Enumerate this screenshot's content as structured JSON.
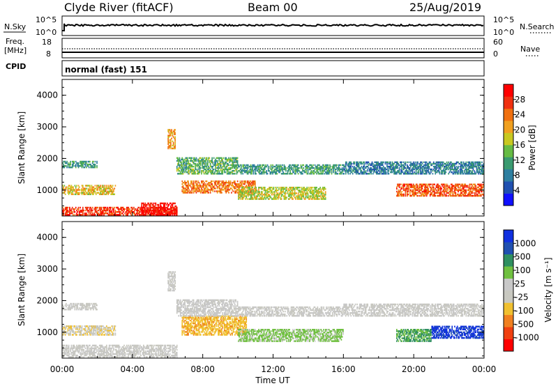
{
  "header": {
    "station": "Clyde River (fitACF)",
    "beam": "Beam 00",
    "date": "25/Aug/2019"
  },
  "nsky_panel": {
    "left_label": "N.Sky",
    "right_label": "N.Search",
    "left_ticks": [
      "10^5",
      "10^0"
    ],
    "right_ticks": [
      "10^5",
      "10^0"
    ]
  },
  "freq_panel": {
    "left_label_line1": "Freq.",
    "left_label_line2": "[MHz]",
    "right_label": "Nave",
    "left_ticks": [
      "18",
      "8"
    ],
    "right_ticks": [
      "60",
      "0"
    ]
  },
  "cpid": {
    "label": "CPID",
    "value": "normal (fast) 151"
  },
  "colors": {
    "power_scale": [
      "#1010ff",
      "#2050b0",
      "#2e7fa0",
      "#3a9a70",
      "#66bb44",
      "#c8c820",
      "#f0a020",
      "#f07010",
      "#f03010",
      "#ff0000"
    ],
    "velocity_scale": [
      "#ff0000",
      "#f04010",
      "#f08020",
      "#f0c030",
      "#c8c8c0",
      "#c8c8c8",
      "#70c040",
      "#2f8f60",
      "#2050b0",
      "#1030e0"
    ]
  },
  "chart_data": [
    {
      "type": "heatmap",
      "title": "Power",
      "xlabel": "",
      "ylabel": "Slant Range [km]",
      "x_ticks": [
        "00:00",
        "04:00",
        "08:00",
        "12:00",
        "16:00",
        "20:00",
        "00:00"
      ],
      "y_ticks": [
        "1000",
        "2000",
        "3000",
        "4000"
      ],
      "ylim": [
        180,
        4500
      ],
      "colorbar": {
        "label": "Power [dB]",
        "ticks": [
          "4",
          "8",
          "12",
          "16",
          "20",
          "24",
          "28"
        ],
        "range": [
          0,
          30
        ]
      },
      "bands": [
        {
          "from_hour": 0.0,
          "to_hour": 2.0,
          "range_km": [
            1700,
            1900
          ],
          "value": 10
        },
        {
          "from_hour": 0.0,
          "to_hour": 3.0,
          "range_km": [
            850,
            1150
          ],
          "value": 18
        },
        {
          "from_hour": 0.0,
          "to_hour": 6.5,
          "range_km": [
            200,
            450
          ],
          "value": 26
        },
        {
          "from_hour": 4.5,
          "to_hour": 6.5,
          "range_km": [
            200,
            600
          ],
          "value": 28
        },
        {
          "from_hour": 6.5,
          "to_hour": 10.0,
          "range_km": [
            1500,
            2000
          ],
          "value": 12
        },
        {
          "from_hour": 6.8,
          "to_hour": 11.0,
          "range_km": [
            900,
            1300
          ],
          "value": 22
        },
        {
          "from_hour": 10.0,
          "to_hour": 16.0,
          "range_km": [
            1500,
            1800
          ],
          "value": 10
        },
        {
          "from_hour": 10.0,
          "to_hour": 15.0,
          "range_km": [
            700,
            1100
          ],
          "value": 16
        },
        {
          "from_hour": 16.0,
          "to_hour": 24.0,
          "range_km": [
            1500,
            1900
          ],
          "value": 8
        },
        {
          "from_hour": 19.0,
          "to_hour": 24.0,
          "range_km": [
            800,
            1200
          ],
          "value": 24
        },
        {
          "from_hour": 6.0,
          "to_hour": 6.4,
          "range_km": [
            2300,
            2900
          ],
          "value": 20
        }
      ]
    },
    {
      "type": "heatmap",
      "title": "Velocity",
      "xlabel": "Time UT",
      "ylabel": "Slant Range [km]",
      "x_ticks": [
        "00:00",
        "04:00",
        "08:00",
        "12:00",
        "16:00",
        "20:00",
        "00:00"
      ],
      "y_ticks": [
        "1000",
        "2000",
        "3000",
        "4000"
      ],
      "ylim": [
        180,
        4500
      ],
      "colorbar": {
        "label": "Velocity [m s⁻¹]",
        "ticks": [
          "-1000",
          "-500",
          "-100",
          "-25",
          "25",
          "100",
          "500",
          "1000"
        ],
        "range": [
          -1200,
          1200
        ]
      },
      "bands": [
        {
          "from_hour": 0.0,
          "to_hour": 2.0,
          "range_km": [
            1700,
            1900
          ],
          "value": 0
        },
        {
          "from_hour": 0.0,
          "to_hour": 3.0,
          "range_km": [
            900,
            1200
          ],
          "value": -200
        },
        {
          "from_hour": 0.0,
          "to_hour": 6.5,
          "range_km": [
            200,
            600
          ],
          "value": 0
        },
        {
          "from_hour": 6.8,
          "to_hour": 10.5,
          "range_km": [
            900,
            1500
          ],
          "value": -400
        },
        {
          "from_hour": 6.5,
          "to_hour": 10.0,
          "range_km": [
            1500,
            2000
          ],
          "value": 60
        },
        {
          "from_hour": 10.0,
          "to_hour": 16.0,
          "range_km": [
            1500,
            1800
          ],
          "value": 0
        },
        {
          "from_hour": 10.0,
          "to_hour": 16.0,
          "range_km": [
            700,
            1100
          ],
          "value": 300
        },
        {
          "from_hour": 16.0,
          "to_hour": 24.0,
          "range_km": [
            1500,
            1900
          ],
          "value": 0
        },
        {
          "from_hour": 19.0,
          "to_hour": 21.0,
          "range_km": [
            700,
            1100
          ],
          "value": 500
        },
        {
          "from_hour": 21.0,
          "to_hour": 24.0,
          "range_km": [
            800,
            1200
          ],
          "value": 1000
        },
        {
          "from_hour": 6.0,
          "to_hour": 6.4,
          "range_km": [
            2300,
            2900
          ],
          "value": 0
        }
      ]
    }
  ]
}
